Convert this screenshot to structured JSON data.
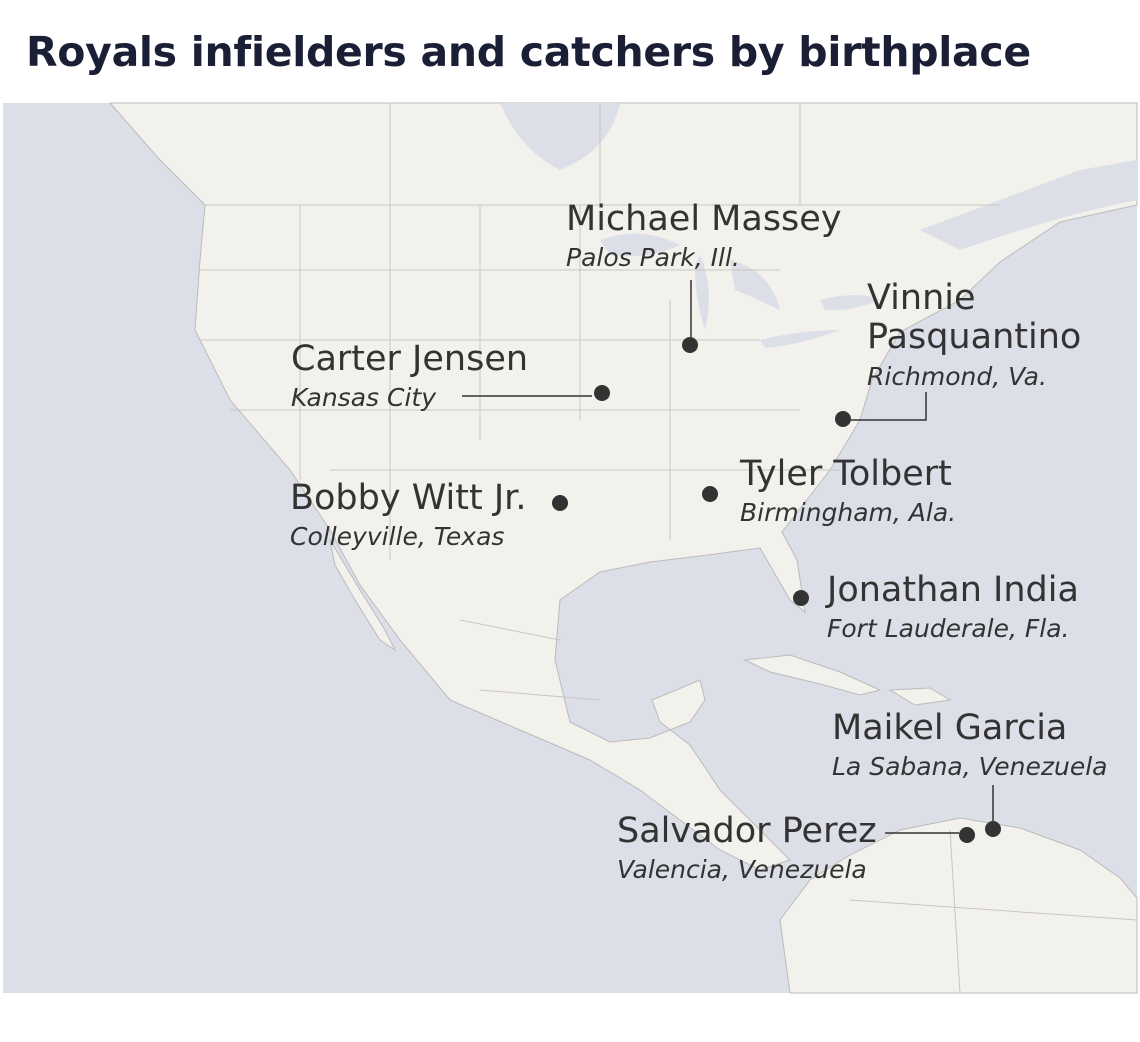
{
  "title": "Royals infielders and catchers by birthplace",
  "players": [
    {
      "name": "Michael Massey",
      "birthplace": "Palos Park, Ill."
    },
    {
      "name": "Vinnie Pasquantino",
      "birthplace": "Richmond, Va."
    },
    {
      "name": "Carter Jensen",
      "birthplace": "Kansas City"
    },
    {
      "name": "Bobby Witt Jr.",
      "birthplace": "Colleyville, Texas"
    },
    {
      "name": "Tyler Tolbert",
      "birthplace": "Birmingham, Ala."
    },
    {
      "name": "Jonathan India",
      "birthplace": "Fort Lauderale, Fla."
    },
    {
      "name": "Maikel Garcia",
      "birthplace": "La Sabana, Venezuela"
    },
    {
      "name": "Salvador Perez",
      "birthplace": "Valencia, Venezuela"
    }
  ]
}
